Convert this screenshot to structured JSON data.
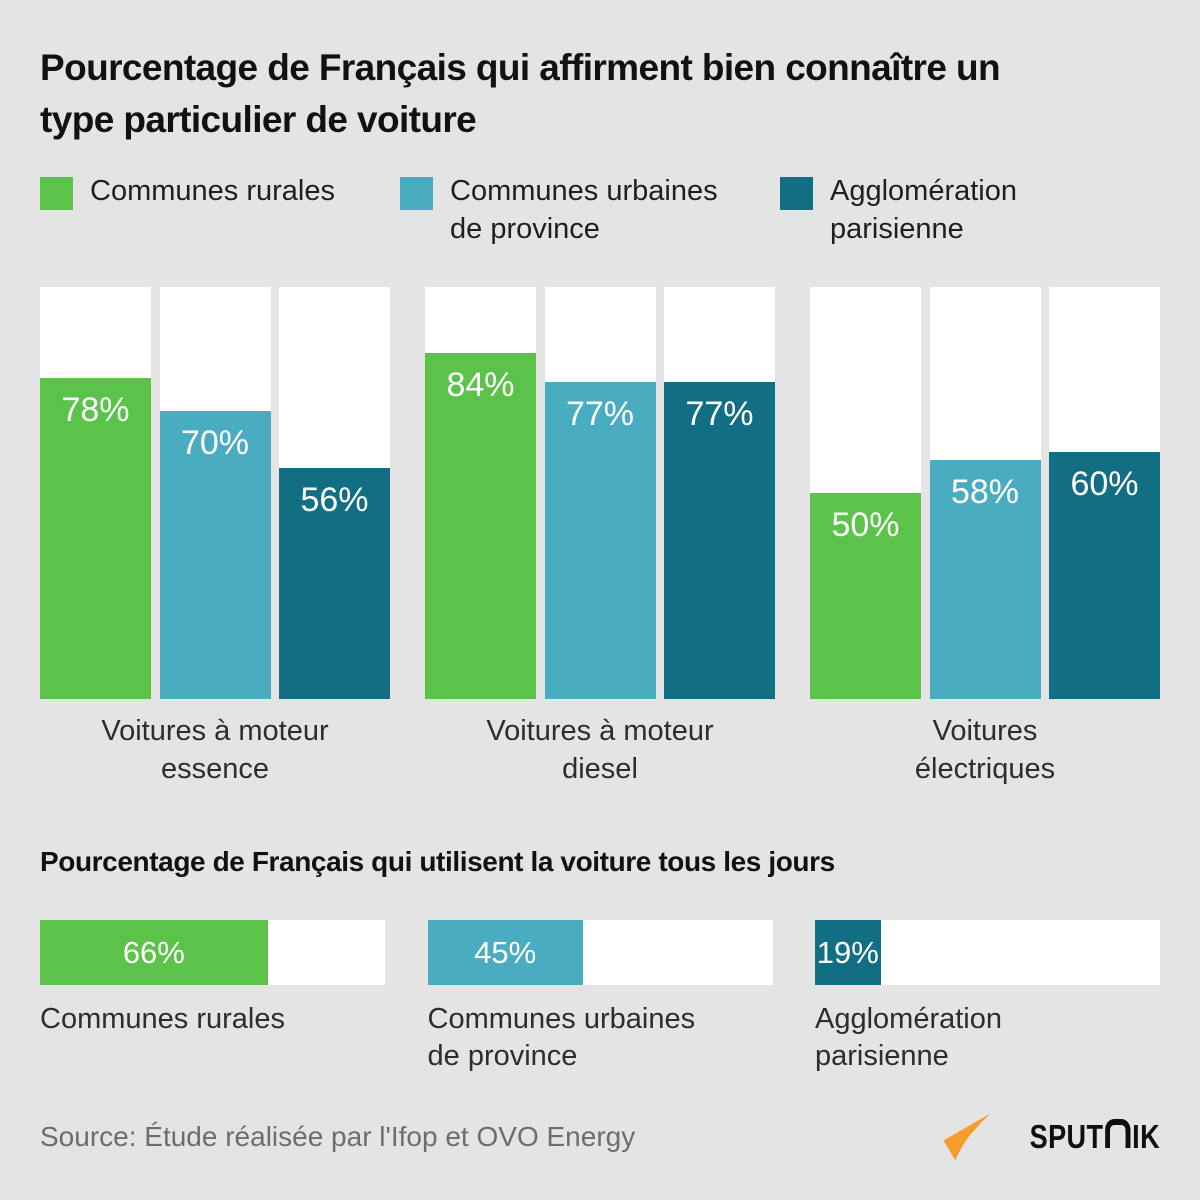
{
  "title": "Pourcentage de Français qui affirment bien connaître un type particulier de voiture",
  "legend": [
    {
      "label": "Communes rurales",
      "color": "#5bc24a"
    },
    {
      "label": "Communes urbaines\nde province",
      "color": "#4aacc0"
    },
    {
      "label": "Agglomération\nparisienne",
      "color": "#116e83"
    }
  ],
  "chart_data": [
    {
      "type": "bar",
      "title": "Pourcentage de Français qui affirment bien connaître un type particulier de voiture",
      "categories": [
        "Voitures à moteur essence",
        "Voitures à moteur diesel",
        "Voitures électriques"
      ],
      "categories_display": [
        "Voitures à moteur\nessence",
        "Voitures à moteur\ndiesel",
        "Voitures\nélectriques"
      ],
      "series": [
        {
          "name": "Communes rurales",
          "color": "#5bc24a",
          "values": [
            78,
            84,
            50
          ]
        },
        {
          "name": "Communes urbaines de province",
          "color": "#4aacc0",
          "values": [
            70,
            77,
            58
          ]
        },
        {
          "name": "Agglomération parisienne",
          "color": "#116e83",
          "values": [
            56,
            77,
            60
          ]
        }
      ],
      "unit": "%",
      "ylim": [
        0,
        100
      ],
      "value_labels": true,
      "grid": false,
      "legend_position": "top"
    },
    {
      "type": "bar",
      "orientation": "horizontal",
      "title": "Pourcentage de Français qui utilisent la voiture tous les jours",
      "categories": [
        "Communes rurales",
        "Communes urbaines de province",
        "Agglomération parisienne"
      ],
      "categories_display": [
        "Communes rurales",
        "Communes urbaines\nde province",
        "Agglomération\nparisienne"
      ],
      "values": [
        66,
        45,
        19
      ],
      "colors": [
        "#5bc24a",
        "#4aacc0",
        "#116e83"
      ],
      "unit": "%",
      "xlim": [
        0,
        100
      ],
      "value_labels": true,
      "grid": false
    }
  ],
  "section2_title": "Pourcentage de Français qui utilisent la voiture tous les jours",
  "footer": {
    "source": "Source: Étude réalisée par l'Ifop et OVO Energy",
    "brand": "SPUTNIK",
    "brand_prefix": "SPUT",
    "brand_suffix": "IK",
    "brand_arrow_color": "#f79b2a"
  }
}
